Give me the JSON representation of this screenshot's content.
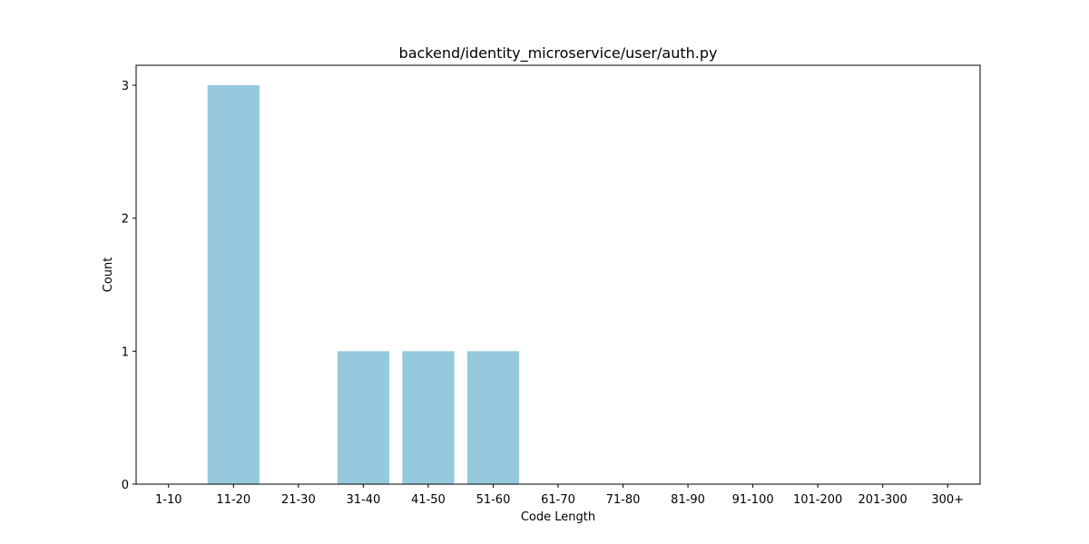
{
  "chart_data": {
    "type": "bar",
    "title": "backend/identity_microservice/user/auth.py",
    "xlabel": "Code Length",
    "ylabel": "Count",
    "categories": [
      "1-10",
      "11-20",
      "21-30",
      "31-40",
      "41-50",
      "51-60",
      "61-70",
      "71-80",
      "81-90",
      "91-100",
      "101-200",
      "201-300",
      "300+"
    ],
    "values": [
      0,
      3,
      0,
      1,
      1,
      1,
      0,
      0,
      0,
      0,
      0,
      0,
      0
    ],
    "ylim": [
      0,
      3.15
    ],
    "yticks": [
      0,
      1,
      2,
      3
    ],
    "bar_color": "#96c9dd",
    "grid": false,
    "legend": "none"
  }
}
